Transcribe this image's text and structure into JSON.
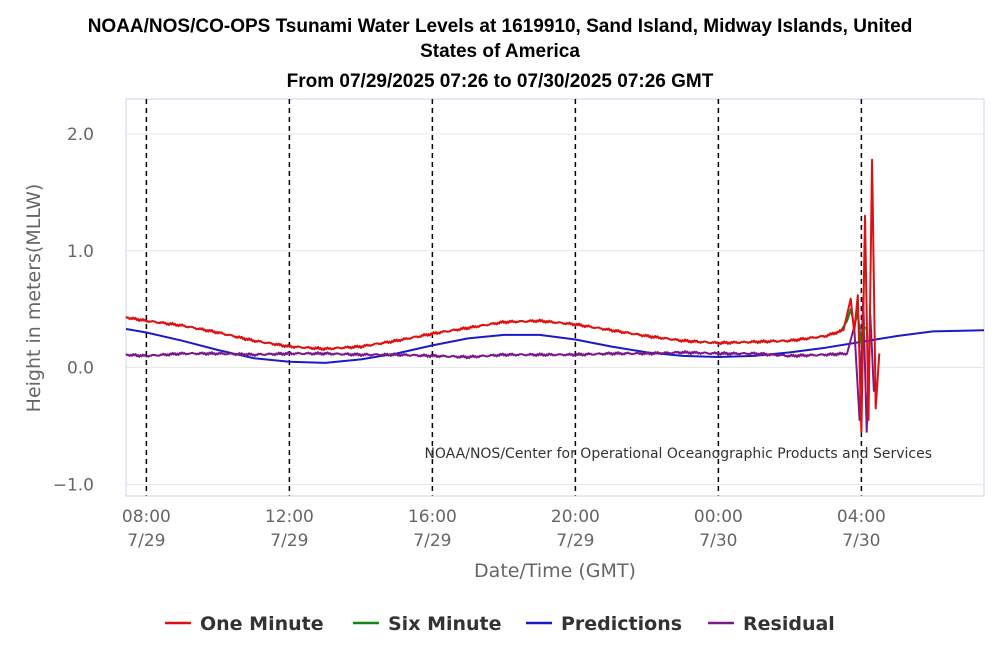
{
  "chart_data": {
    "type": "line",
    "title": "NOAA/NOS/CO-OPS Tsunami Water Levels at 1619910, Sand Island, Midway Islands, United States of America",
    "subtitle": "From 07/29/2025 07:26 to 07/30/2025 07:26 GMT",
    "xlabel": "Date/Time (GMT)",
    "ylabel": "Height in meters(MLLW)",
    "ylim": [
      -1.1,
      2.3
    ],
    "xlim_hours": [
      7.43,
      31.43
    ],
    "yticks": [
      {
        "value": 2.0,
        "label": "2.0"
      },
      {
        "value": 1.0,
        "label": "1.0"
      },
      {
        "value": 0.0,
        "label": "0.0"
      },
      {
        "value": -1.0,
        "label": "−1.0"
      }
    ],
    "xticks": [
      {
        "hour": 8,
        "time": "08:00",
        "date": "7/29"
      },
      {
        "hour": 12,
        "time": "12:00",
        "date": "7/29"
      },
      {
        "hour": 16,
        "time": "16:00",
        "date": "7/29"
      },
      {
        "hour": 20,
        "time": "20:00",
        "date": "7/29"
      },
      {
        "hour": 24,
        "time": "00:00",
        "date": "7/30"
      },
      {
        "hour": 28,
        "time": "04:00",
        "date": "7/30"
      }
    ],
    "vertical_dashed_lines_hours": [
      8,
      12,
      16,
      20,
      24,
      28
    ],
    "credit": "NOAA/NOS/Center for Operational Oceanographic Products and Services",
    "series": [
      {
        "name": "One Minute",
        "color": "#dd1111",
        "x": [
          7.43,
          8.0,
          9.0,
          10.0,
          11.0,
          12.0,
          13.0,
          14.0,
          15.0,
          16.0,
          17.0,
          18.0,
          19.0,
          20.0,
          21.0,
          22.0,
          23.0,
          24.0,
          25.0,
          26.0,
          27.0,
          27.5,
          27.7,
          27.8,
          27.9,
          28.0,
          28.1,
          28.2,
          28.3,
          28.4,
          28.5
        ],
        "y": [
          0.43,
          0.4,
          0.36,
          0.3,
          0.23,
          0.18,
          0.16,
          0.18,
          0.23,
          0.29,
          0.34,
          0.39,
          0.4,
          0.37,
          0.32,
          0.27,
          0.23,
          0.21,
          0.22,
          0.23,
          0.27,
          0.32,
          0.59,
          0.3,
          0.62,
          -0.55,
          1.3,
          -0.45,
          1.78,
          -0.35,
          0.12
        ]
      },
      {
        "name": "Six Minute",
        "color": "#118811",
        "x": [
          27.4,
          27.6,
          27.7,
          27.8,
          27.9,
          28.0,
          28.1
        ],
        "y": [
          0.3,
          0.4,
          0.5,
          0.36,
          0.46,
          0.2,
          0.35
        ]
      },
      {
        "name": "Predictions",
        "color": "#1a1acc",
        "x": [
          7.43,
          8.0,
          9.0,
          10.0,
          11.0,
          12.0,
          13.0,
          14.0,
          15.0,
          16.0,
          17.0,
          18.0,
          19.0,
          20.0,
          21.0,
          22.0,
          23.0,
          24.0,
          25.0,
          26.0,
          27.0,
          28.0,
          29.0,
          30.0,
          31.43
        ],
        "y": [
          0.33,
          0.3,
          0.23,
          0.15,
          0.08,
          0.05,
          0.04,
          0.07,
          0.12,
          0.19,
          0.25,
          0.28,
          0.28,
          0.24,
          0.18,
          0.13,
          0.1,
          0.09,
          0.1,
          0.13,
          0.17,
          0.22,
          0.27,
          0.31,
          0.32
        ]
      },
      {
        "name": "Residual",
        "color": "#7a1a8a",
        "x": [
          7.43,
          8.0,
          9.0,
          10.0,
          11.0,
          12.0,
          13.0,
          14.0,
          15.0,
          16.0,
          17.0,
          18.0,
          19.0,
          20.0,
          21.0,
          22.0,
          23.0,
          24.0,
          25.0,
          26.0,
          27.0,
          27.6,
          27.8,
          27.95,
          28.05,
          28.15,
          28.25,
          28.35,
          28.45
        ],
        "y": [
          0.11,
          0.1,
          0.12,
          0.12,
          0.11,
          0.12,
          0.12,
          0.11,
          0.11,
          0.1,
          0.09,
          0.11,
          0.11,
          0.11,
          0.12,
          0.12,
          0.13,
          0.12,
          0.12,
          0.1,
          0.11,
          0.12,
          0.35,
          -0.45,
          0.6,
          -0.55,
          0.45,
          -0.2,
          -0.15
        ]
      }
    ]
  }
}
